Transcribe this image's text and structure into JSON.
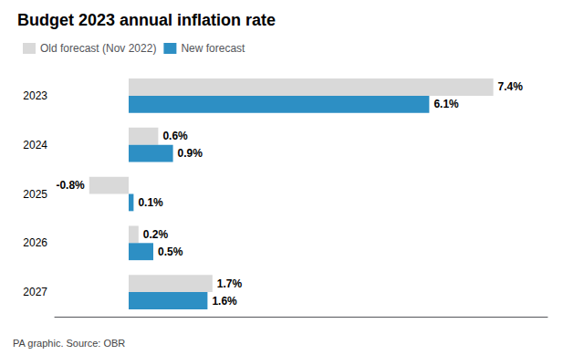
{
  "chart_data": {
    "type": "bar",
    "orientation": "horizontal",
    "title": "Budget 2023 annual inflation rate",
    "annotation": "PA graphic. Source: OBR",
    "categories": [
      "2023",
      "2024",
      "2025",
      "2026",
      "2027"
    ],
    "series": [
      {
        "name": "Old forecast (Nov 2022)",
        "color": "#d9d9d9",
        "values": [
          7.4,
          0.6,
          -0.8,
          0.2,
          1.7
        ],
        "value_labels": [
          "7.4%",
          "0.6%",
          "-0.8%",
          "0.2%",
          "1.7%"
        ]
      },
      {
        "name": "New forecast",
        "color": "#2d8fc4",
        "values": [
          6.1,
          0.9,
          0.1,
          0.5,
          1.6
        ],
        "value_labels": [
          "6.1%",
          "0.9%",
          "0.1%",
          "0.5%",
          "1.6%"
        ]
      }
    ],
    "xlim": [
      -1.5,
      8.5
    ],
    "data_labels": true,
    "tick_labels": "y",
    "grid": false,
    "legend": "upper left"
  }
}
